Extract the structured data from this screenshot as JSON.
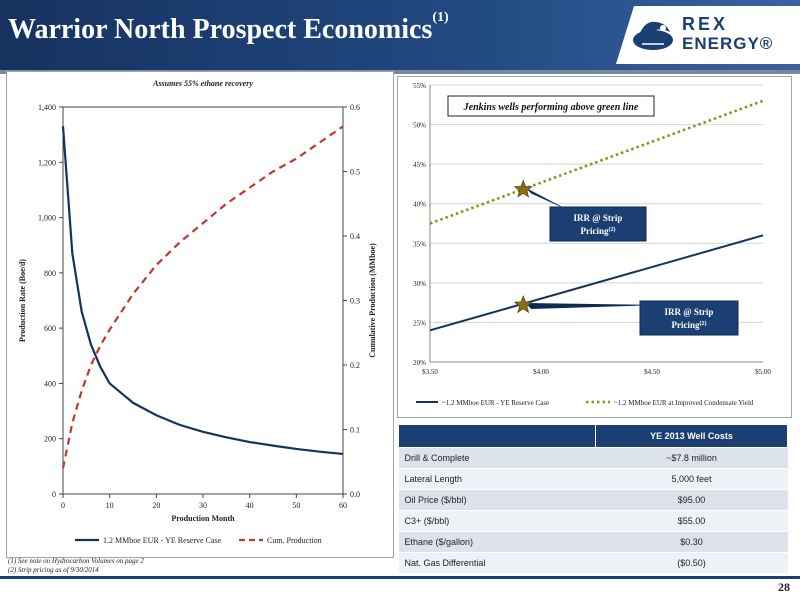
{
  "header": {
    "title": "Warrior North Prospect Economics",
    "title_sup": "(1)",
    "logo_line1": "REX",
    "logo_line2": "ENERGY®"
  },
  "colors": {
    "header_bg": "#1c3f73",
    "series_solid": "#16325f",
    "series_dashed": "#c0392b",
    "series_green": "#7a9a1e",
    "star": "#8a6d14"
  },
  "chart_data": [
    {
      "type": "line",
      "title": "Assumes 55% ethane recovery",
      "xlabel": "Production Month",
      "ylabel": "Production Rate (Boe/d)",
      "y2label": "Cumulative Production (MMboe)",
      "xlim": [
        0,
        60
      ],
      "ylim": [
        0,
        1400
      ],
      "y2lim": [
        0,
        0.6
      ],
      "x_ticks": [
        "0",
        "10",
        "20",
        "30",
        "40",
        "50",
        "60"
      ],
      "y_ticks": [
        "0",
        "200",
        "400",
        "600",
        "800",
        "1,000",
        "1,200",
        "1,400"
      ],
      "y2_ticks": [
        "0.0",
        "0.1",
        "0.2",
        "0.3",
        "0.4",
        "0.5",
        "0.6"
      ],
      "legend_position": "bottom",
      "series": [
        {
          "name": "1.2 MMboe EUR - YE Reserve Case",
          "axis": "left",
          "style": "solid",
          "x": [
            0,
            2,
            4,
            6,
            8,
            10,
            15,
            20,
            25,
            30,
            35,
            40,
            45,
            50,
            55,
            60
          ],
          "values": [
            1330,
            870,
            660,
            540,
            460,
            400,
            330,
            285,
            250,
            225,
            205,
            188,
            175,
            163,
            153,
            145
          ]
        },
        {
          "name": "Cum. Production",
          "axis": "right",
          "style": "dashed",
          "x": [
            0,
            2,
            4,
            6,
            8,
            10,
            15,
            20,
            25,
            30,
            35,
            40,
            45,
            50,
            55,
            60
          ],
          "values": [
            0.04,
            0.11,
            0.16,
            0.2,
            0.23,
            0.255,
            0.31,
            0.355,
            0.39,
            0.42,
            0.45,
            0.475,
            0.5,
            0.52,
            0.545,
            0.57
          ]
        }
      ]
    },
    {
      "type": "line",
      "banner": "Jenkins wells performing above green line",
      "xlim": [
        3.5,
        5.0
      ],
      "ylim": [
        0.2,
        0.55
      ],
      "x_ticks": [
        "$3.50",
        "$4.00",
        "$4.50",
        "$5.00"
      ],
      "y_ticks": [
        "20%",
        "25%",
        "30%",
        "35%",
        "40%",
        "45%",
        "50%",
        "55%"
      ],
      "legend_position": "bottom",
      "series": [
        {
          "name": "~1.2 MMboe EUR - YE Reserve Case",
          "style": "solid",
          "x": [
            3.5,
            5.0
          ],
          "values": [
            0.24,
            0.36
          ]
        },
        {
          "name": "~1.2 MMboe EUR at Improved Condensate Yield",
          "style": "dotted",
          "x": [
            3.5,
            5.0
          ],
          "values": [
            0.375,
            0.53
          ]
        }
      ],
      "markers": [
        {
          "x": 3.92,
          "y": 0.418,
          "label": "IRR @ Strip Pricing",
          "sup": "(2)"
        },
        {
          "x": 3.92,
          "y": 0.272,
          "label": "IRR @ Strip Pricing",
          "sup": "(2)"
        }
      ]
    }
  ],
  "cost_table": {
    "header": "YE 2013 Well Costs",
    "rows": [
      {
        "label": "Drill & Complete",
        "value": "~$7.8 million"
      },
      {
        "label": "Lateral Length",
        "value": "5,000 feet"
      },
      {
        "label": "Oil Price ($/bbl)",
        "value": "$95.00"
      },
      {
        "label": "C3+ ($/bbl)",
        "value": "$55.00"
      },
      {
        "label": "Ethane ($/gallon)",
        "value": "$0.30"
      },
      {
        "label": "Nat. Gas Differential",
        "value": "($0.50)"
      }
    ]
  },
  "footnotes": [
    "(1)    See note on Hydrocarbon Volumes on page 2",
    "(2)    Strip pricing as of 9/30/2014"
  ],
  "page_number": "28"
}
